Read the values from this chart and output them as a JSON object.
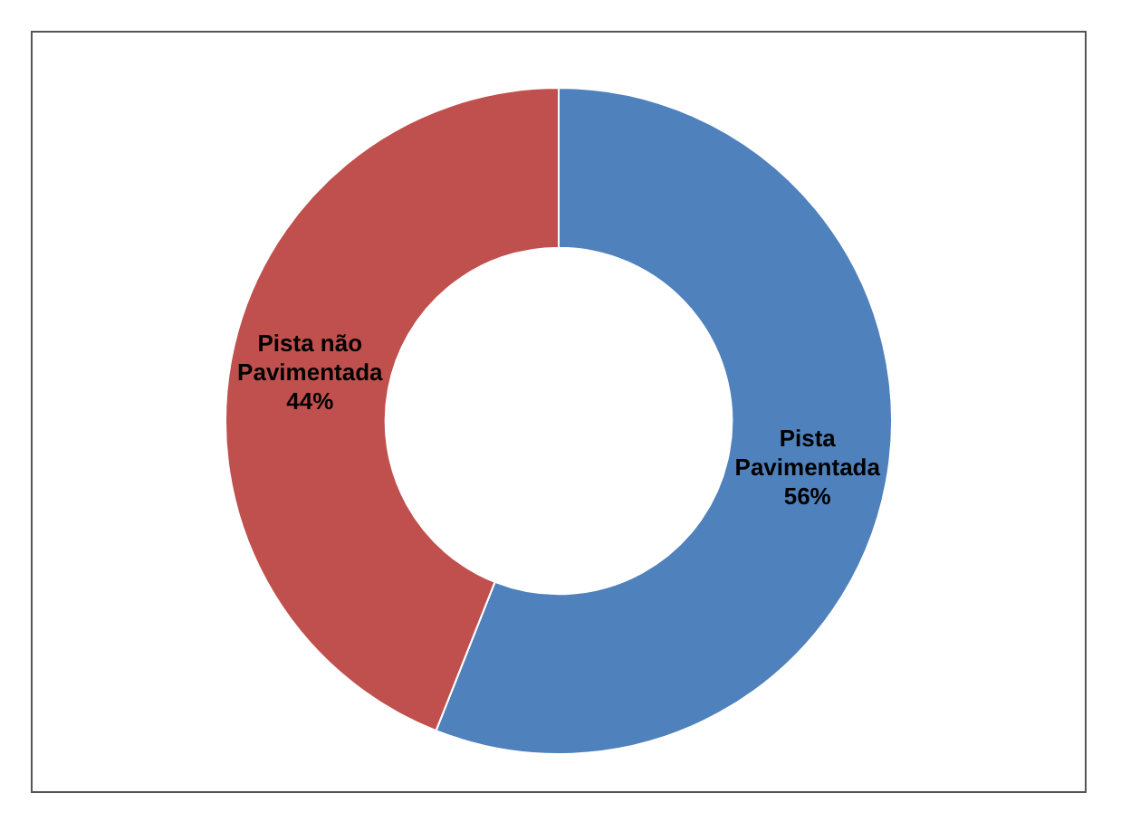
{
  "chart_data": {
    "type": "donut",
    "categories": [
      "Pista Pavimentada",
      "Pista não Pavimentada"
    ],
    "values": [
      56,
      44
    ],
    "colors": [
      "#4f81bd",
      "#c0504d"
    ],
    "value_labels": [
      "56%",
      "44%"
    ],
    "legend": false
  }
}
